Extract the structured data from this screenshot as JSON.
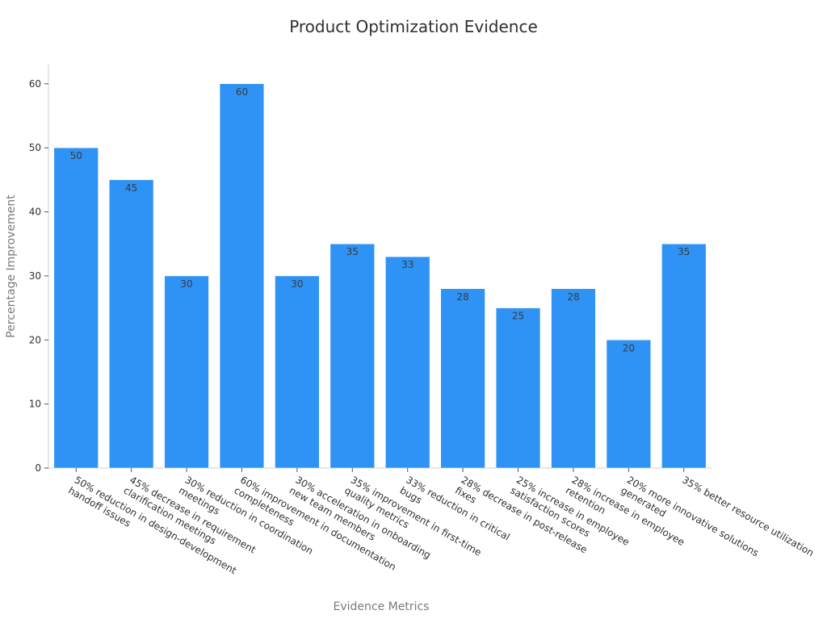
{
  "chart_data": {
    "type": "bar",
    "title": "Product Optimization Evidence",
    "xlabel": "Evidence Metrics",
    "ylabel": "Percentage Improvement",
    "ylim": [
      0,
      63
    ],
    "yticks": [
      0,
      10,
      20,
      30,
      40,
      50,
      60
    ],
    "grid": false,
    "bar_color": "#2e93f5",
    "categories": [
      [
        "50% reduction in design-development",
        "handoff issues"
      ],
      [
        "45% decrease in requirement",
        "clarification meetings"
      ],
      [
        "30% reduction in coordination",
        "meetings"
      ],
      [
        "60% improvement in documentation",
        "completeness"
      ],
      [
        "30% acceleration in onboarding",
        "new team members"
      ],
      [
        "35% improvement in first-time",
        "quality metrics"
      ],
      [
        "33% reduction in critical",
        "bugs"
      ],
      [
        "28% decrease in post-release",
        "fixes"
      ],
      [
        "25% increase in employee",
        "satisfaction scores"
      ],
      [
        "28% increase in employee",
        "retention"
      ],
      [
        "20% more innovative solutions",
        "generated"
      ],
      [
        "35% better resource utilization"
      ]
    ],
    "values": [
      50,
      45,
      30,
      60,
      30,
      35,
      33,
      28,
      25,
      28,
      20,
      35
    ]
  }
}
